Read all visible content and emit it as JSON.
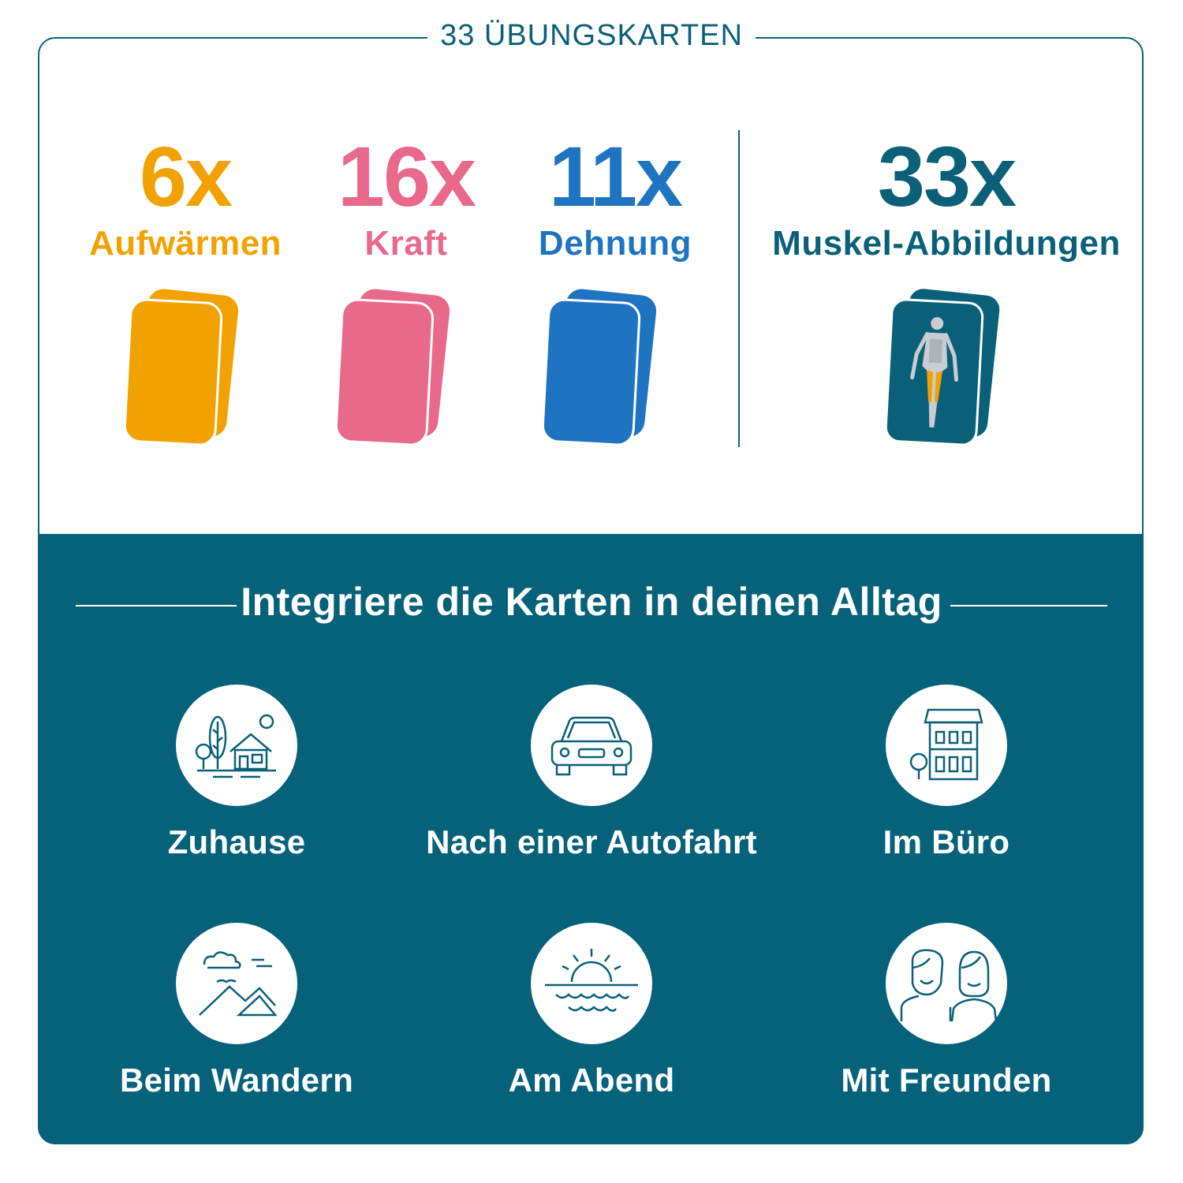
{
  "header": {
    "title": "33 ÜBUNGSKARTEN"
  },
  "stats": [
    {
      "count": "6x",
      "label": "Aufwärmen",
      "color": "#f2a200"
    },
    {
      "count": "16x",
      "label": "Kraft",
      "color": "#e8698a"
    },
    {
      "count": "11x",
      "label": "Dehnung",
      "color": "#1f74c1"
    },
    {
      "count": "33x",
      "label": "Muskel-Abbildungen",
      "color": "#0a6079"
    }
  ],
  "section": {
    "title": "Integriere die Karten in deinen Alltag"
  },
  "items": [
    {
      "label": "Zuhause",
      "icon": "house-with-trees-icon"
    },
    {
      "label": "Nach einer Autofahrt",
      "icon": "car-icon"
    },
    {
      "label": "Im Büro",
      "icon": "office-building-icon"
    },
    {
      "label": "Beim Wandern",
      "icon": "mountains-icon"
    },
    {
      "label": "Am Abend",
      "icon": "sunset-icon"
    },
    {
      "label": "Mit Freunden",
      "icon": "friends-icon"
    }
  ],
  "colors": {
    "teal": "#0a6079",
    "teal_bg": "#05627a",
    "orange": "#f2a200",
    "pink": "#e8698a",
    "blue": "#1f74c1"
  }
}
